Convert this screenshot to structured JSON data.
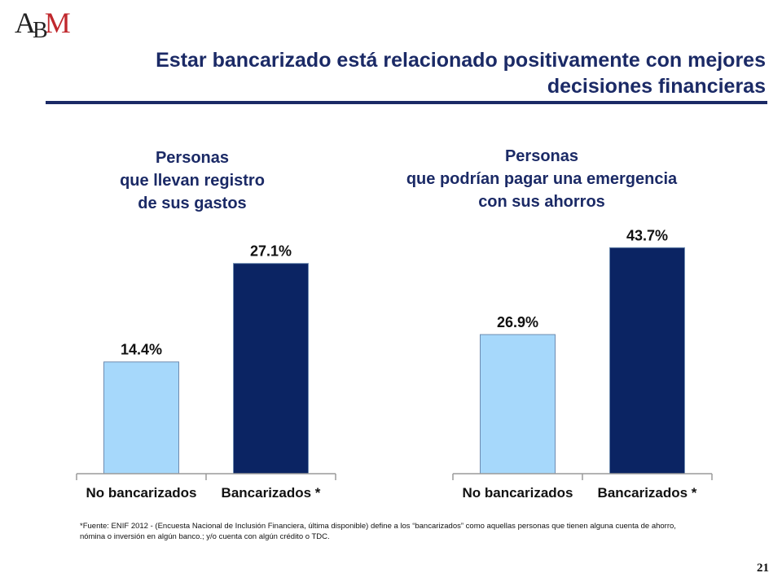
{
  "logo": {
    "letters_a": "A",
    "letters_b": "B",
    "letters_m": "M"
  },
  "slide": {
    "title": "Estar bancarizado está relacionado positivamente con mejores decisiones financieras",
    "footnote": "*Fuente: ENIF  2012 - (Encuesta Nacional de Inclusión Financiera, última disponible) define a los “bancarizados” como aquellas personas que tienen alguna cuenta de ahorro, nómina o inversión en algún banco.; y/o cuenta con algún crédito o TDC.",
    "page_number": "21"
  },
  "colors": {
    "title": "#1b2a66",
    "bar_light": "#a6d8fb",
    "bar_dark": "#0b2463"
  },
  "chart_data": [
    {
      "type": "bar",
      "title_lines": [
        "Personas",
        "que llevan registro",
        "de sus gastos"
      ],
      "categories": [
        "No bancarizados",
        "Bancarizados *"
      ],
      "values": [
        14.4,
        27.1
      ],
      "value_labels": [
        "14.4%",
        "27.1%"
      ],
      "ylim": [
        0,
        30
      ],
      "grid": false,
      "legend": "none"
    },
    {
      "type": "bar",
      "title_lines": [
        "Personas",
        "que podrían pagar una emergencia",
        "con sus ahorros"
      ],
      "categories": [
        "No bancarizados",
        "Bancarizados *"
      ],
      "values": [
        26.9,
        43.7
      ],
      "value_labels": [
        "26.9%",
        "43.7%"
      ],
      "ylim": [
        0,
        48
      ],
      "grid": false,
      "legend": "none"
    }
  ]
}
